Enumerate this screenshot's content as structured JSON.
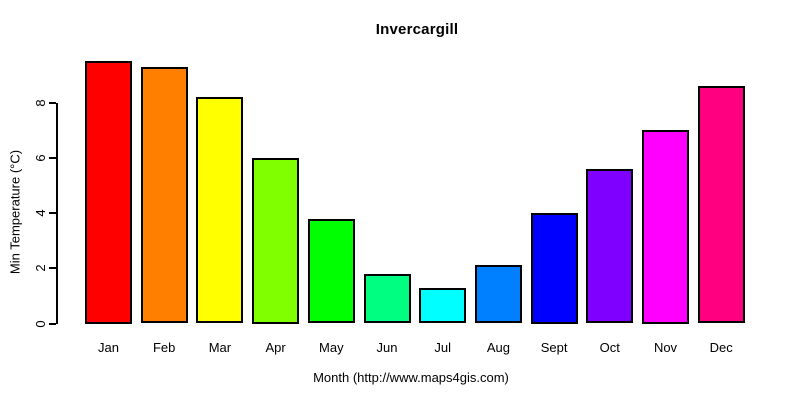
{
  "chart_data": {
    "type": "bar",
    "title": "Invercargill",
    "xlabel": "Month (http://www.maps4gis.com)",
    "ylabel": "Min Temperature (°C)",
    "categories": [
      "Jan",
      "Feb",
      "Mar",
      "Apr",
      "May",
      "Jun",
      "Jul",
      "Aug",
      "Sept",
      "Oct",
      "Nov",
      "Dec"
    ],
    "values": [
      9.5,
      9.3,
      8.2,
      6.0,
      3.8,
      1.8,
      1.3,
      2.1,
      4.0,
      5.6,
      7.0,
      8.6
    ],
    "bar_colors": [
      "#FF0000",
      "#FF8000",
      "#FFFF00",
      "#80FF00",
      "#00FF00",
      "#00FF80",
      "#00FFFF",
      "#0080FF",
      "#0000FF",
      "#8000FF",
      "#FF00FF",
      "#FF0080"
    ],
    "bar_border_color": "#000000",
    "y_ticks": [
      0,
      2,
      4,
      6,
      8
    ],
    "ylim": [
      0,
      9.6
    ],
    "grid": false,
    "legend_position": "none",
    "axis_color": "#000000",
    "text_color": "#000000",
    "background": "#FFFFFF"
  }
}
